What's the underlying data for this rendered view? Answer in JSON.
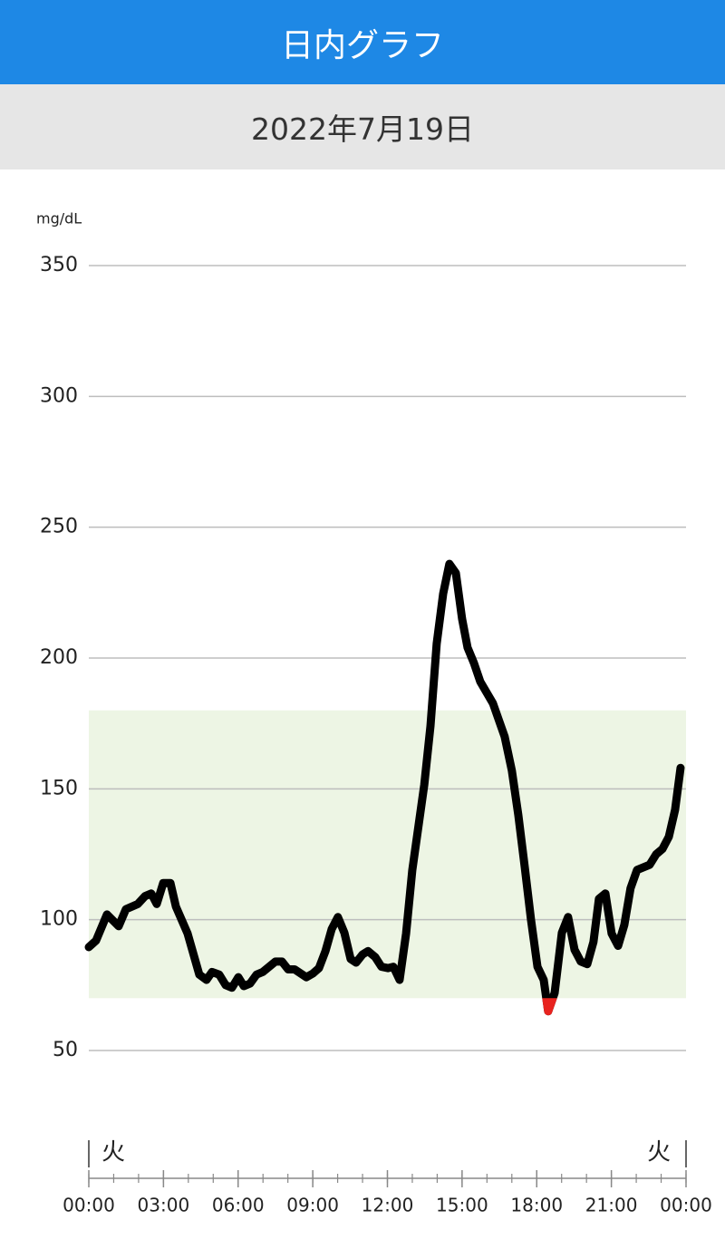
{
  "header": {
    "title": "日内グラフ"
  },
  "date": "2022年7月19日",
  "chart_data": {
    "type": "line",
    "y_label": "mg/dL",
    "x": [
      0,
      0.29,
      0.73,
      1.2,
      1.49,
      1.97,
      2.26,
      2.51,
      2.73,
      2.99,
      3.28,
      3.5,
      3.97,
      4.44,
      4.73,
      4.95,
      5.24,
      5.5,
      5.75,
      6.01,
      6.23,
      6.48,
      6.74,
      6.99,
      7.5,
      7.76,
      8.01,
      8.27,
      8.74,
      9.0,
      9.25,
      9.51,
      9.76,
      10.01,
      10.27,
      10.52,
      10.74,
      11.0,
      11.22,
      11.51,
      11.76,
      12.02,
      12.24,
      12.49,
      12.75,
      13.0,
      13.48,
      13.73,
      13.98,
      14.24,
      14.49,
      14.75,
      15.0,
      15.22,
      15.48,
      15.73,
      16.24,
      16.71,
      17.0,
      17.26,
      17.52,
      17.77,
      18.03,
      18.28,
      18.46,
      18.72,
      19.01,
      19.26,
      19.52,
      19.77,
      20.03,
      20.28,
      20.5,
      20.76,
      21.01,
      21.27,
      21.52,
      21.77,
      22.03,
      22.54,
      22.8,
      23.05,
      23.31,
      23.56,
      23.78
    ],
    "series": [
      {
        "color": "#000000",
        "low_color": "#e8231f",
        "values": [
          89.5,
          92,
          102,
          97.5,
          104,
          106,
          109,
          110,
          106,
          114,
          114,
          105,
          94.7,
          79,
          77,
          80,
          79,
          75,
          74,
          78,
          74.6,
          75.6,
          79,
          80,
          84,
          84,
          81,
          81,
          78,
          79.4,
          81.5,
          88,
          96.4,
          101,
          95,
          85,
          83.6,
          86.7,
          88,
          85.7,
          82,
          81.5,
          82,
          77,
          94.7,
          119,
          151.5,
          174,
          205.5,
          224.6,
          236,
          232.5,
          215,
          204,
          198,
          191,
          182.7,
          170,
          157,
          140,
          120,
          100,
          82,
          77,
          65,
          72,
          95,
          101,
          88.5,
          84,
          83,
          91.5,
          108,
          110,
          94.7,
          90,
          98,
          112,
          119,
          121,
          125,
          127,
          131.7,
          142,
          158
        ]
      }
    ],
    "target_range": [
      70,
      180
    ],
    "target_color": "#edf5e4",
    "ylim": [
      50,
      350
    ],
    "yticks": [
      50,
      100,
      150,
      200,
      250,
      300,
      350
    ],
    "grid": true,
    "xlim": [
      0,
      24
    ],
    "xticks": [
      {
        "value": 0,
        "label": "00:00"
      },
      {
        "value": 3,
        "label": "03:00"
      },
      {
        "value": 6,
        "label": "06:00"
      },
      {
        "value": 9,
        "label": "09:00"
      },
      {
        "value": 12,
        "label": "12:00"
      },
      {
        "value": 15,
        "label": "15:00"
      },
      {
        "value": 18,
        "label": "18:00"
      },
      {
        "value": 21,
        "label": "21:00"
      },
      {
        "value": 24,
        "label": "00:00"
      }
    ],
    "xminorticks": [
      0,
      1,
      2,
      3,
      4,
      5,
      6,
      7,
      8,
      9,
      10,
      11,
      12,
      13,
      14,
      15,
      16,
      17,
      18,
      19,
      20,
      21,
      22,
      23,
      24
    ],
    "day_labels": [
      "火",
      "火"
    ]
  }
}
